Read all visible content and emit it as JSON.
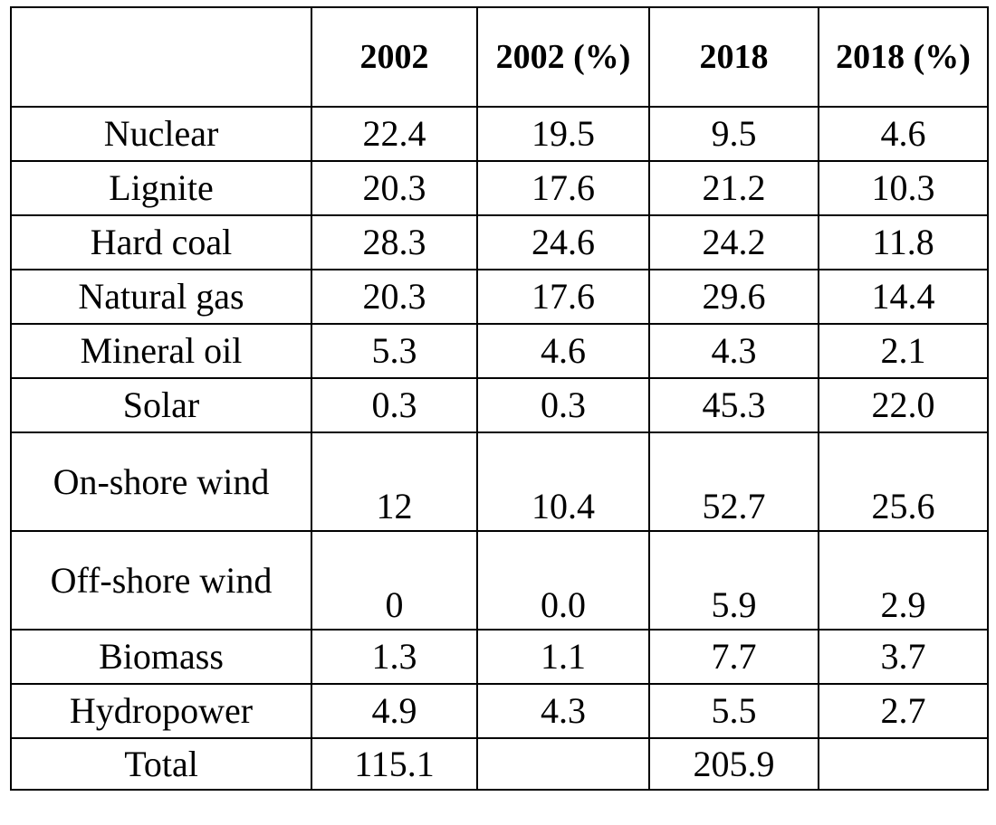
{
  "table": {
    "headers": [
      "",
      "2002",
      "2002 (%)",
      "2018",
      "2018 (%)"
    ],
    "rows": [
      {
        "source": "Nuclear",
        "v2002": "22.4",
        "p2002": "19.5",
        "v2018": "9.5",
        "p2018": "4.6"
      },
      {
        "source": "Lignite",
        "v2002": "20.3",
        "p2002": "17.6",
        "v2018": "21.2",
        "p2018": "10.3"
      },
      {
        "source": "Hard coal",
        "v2002": "28.3",
        "p2002": "24.6",
        "v2018": "24.2",
        "p2018": "11.8"
      },
      {
        "source": "Natural gas",
        "v2002": "20.3",
        "p2002": "17.6",
        "v2018": "29.6",
        "p2018": "14.4"
      },
      {
        "source": "Mineral oil",
        "v2002": "5.3",
        "p2002": "4.6",
        "v2018": "4.3",
        "p2018": "2.1"
      },
      {
        "source": "Solar",
        "v2002": "0.3",
        "p2002": "0.3",
        "v2018": "45.3",
        "p2018": "22.0"
      },
      {
        "source": "On-shore wind",
        "v2002": "12",
        "p2002": "10.4",
        "v2018": "52.7",
        "p2018": "25.6"
      },
      {
        "source": "Off-shore wind",
        "v2002": "0",
        "p2002": "0.0",
        "v2018": "5.9",
        "p2018": "2.9"
      },
      {
        "source": "Biomass",
        "v2002": "1.3",
        "p2002": "1.1",
        "v2018": "7.7",
        "p2018": "3.7"
      },
      {
        "source": "Hydropower",
        "v2002": "4.9",
        "p2002": "4.3",
        "v2018": "5.5",
        "p2018": "2.7"
      }
    ],
    "total": {
      "source": "Total",
      "v2002": "115.1",
      "p2002": "",
      "v2018": "205.9",
      "p2018": ""
    }
  }
}
